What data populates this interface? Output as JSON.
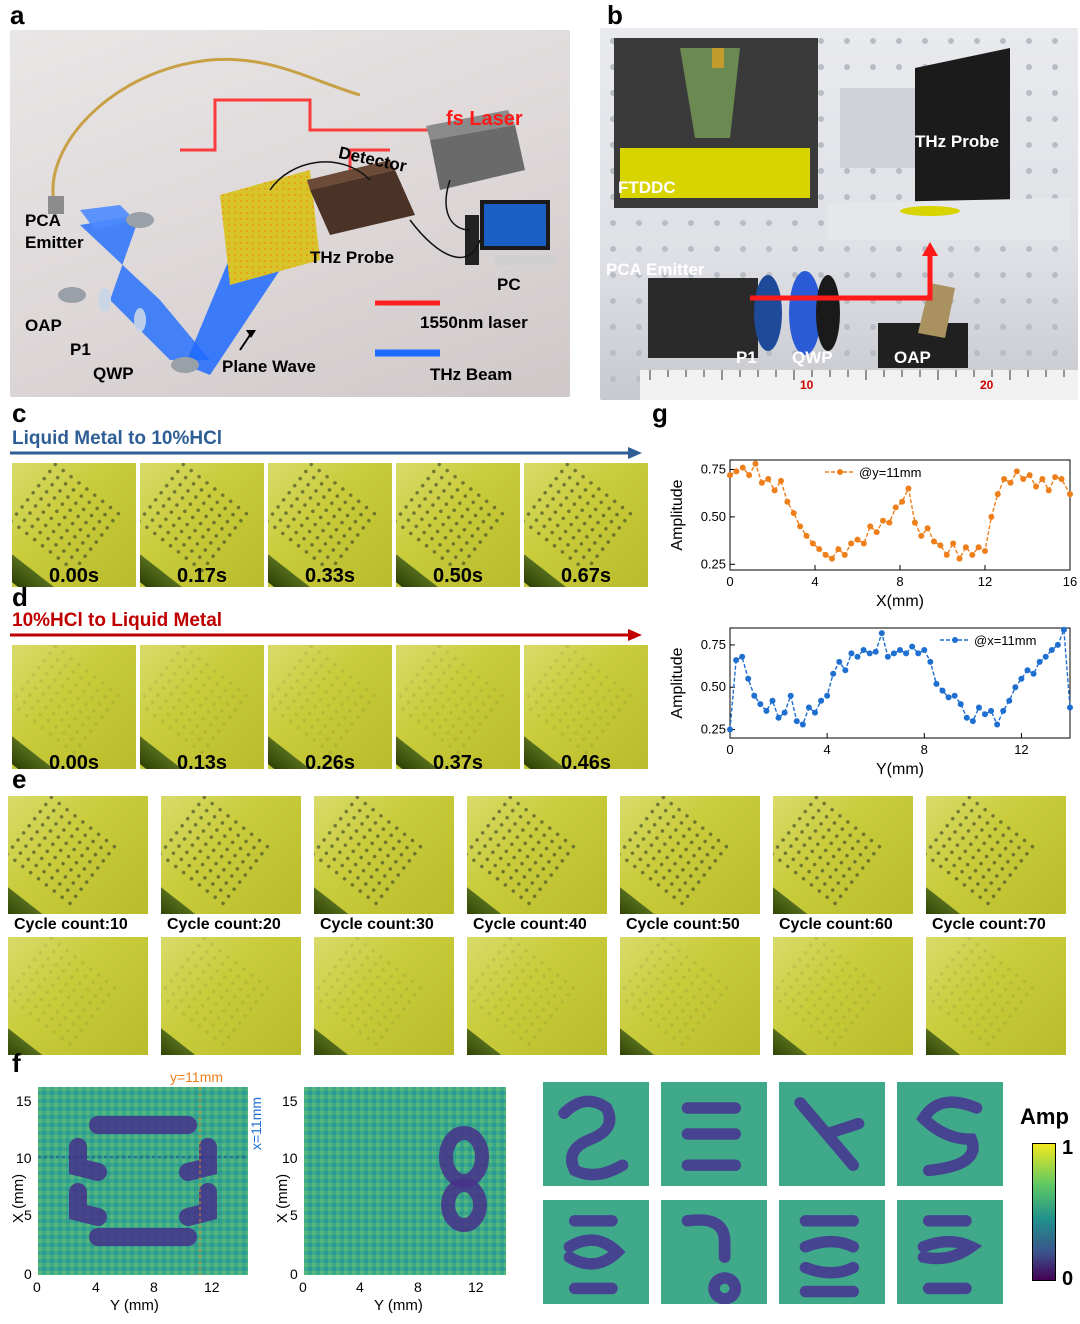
{
  "panels": {
    "a": "a",
    "b": "b",
    "c": "c",
    "d": "d",
    "e": "e",
    "f": "f",
    "g": "g"
  },
  "panel_a": {
    "fs_laser": "fs Laser",
    "detector": "Detector",
    "pca_emitter_1": "PCA",
    "pca_emitter_2": "Emitter",
    "thz_probe": "THz Probe",
    "pc": "PC",
    "oap": "OAP",
    "p1": "P1",
    "qwp": "QWP",
    "plane_wave": "Plane Wave",
    "legend_laser": "1550nm laser",
    "legend_beam": "THz Beam"
  },
  "panel_b": {
    "ftddc": "FTDDC",
    "thz_probe": "THz Probe",
    "pca_emitter": "PCA Emitter",
    "p1": "P1",
    "qwp": "QWP",
    "oap": "OAP",
    "ruler_10": "10",
    "ruler_20": "20"
  },
  "panel_c": {
    "title": "Liquid Metal to 10%HCl",
    "times": [
      "0.00s",
      "0.17s",
      "0.33s",
      "0.50s",
      "0.67s"
    ]
  },
  "panel_d": {
    "title": "10%HCl to Liquid Metal",
    "times": [
      "0.00s",
      "0.13s",
      "0.26s",
      "0.37s",
      "0.46s"
    ]
  },
  "panel_e": {
    "cycles": [
      "Cycle count:10",
      "Cycle count:20",
      "Cycle count:30",
      "Cycle count:40",
      "Cycle count:50",
      "Cycle count:60",
      "Cycle count:70"
    ]
  },
  "panel_f": {
    "y_marker": "y=11mm",
    "x_marker": "x=11mm",
    "xlabel": "Y (mm)",
    "ylabel": "X (mm)",
    "x_ticks": [
      "0",
      "4",
      "8",
      "12"
    ],
    "y_ticks": [
      "0",
      "5",
      "10",
      "15"
    ],
    "colorbar_title": "Amp",
    "colorbar_max": "1",
    "colorbar_min": "0"
  },
  "colors": {
    "orange": "#ee7f1a",
    "blue": "#1f6fd1",
    "title_c": "#2f5e96",
    "title_d": "#c00000"
  },
  "chart_data": [
    {
      "type": "line",
      "legend": "@y=11mm",
      "xlabel": "X(mm)",
      "ylabel": "Amplitude",
      "xlim": [
        0,
        16
      ],
      "ylim": [
        0.22,
        0.8
      ],
      "x_ticks": [
        "0",
        "4",
        "8",
        "12",
        "16"
      ],
      "y_ticks": [
        "0.25",
        "0.50",
        "0.75"
      ],
      "x": [
        0.0,
        0.3,
        0.6,
        0.9,
        1.2,
        1.5,
        1.8,
        2.1,
        2.4,
        2.7,
        3.0,
        3.3,
        3.6,
        3.9,
        4.2,
        4.5,
        4.8,
        5.1,
        5.4,
        5.7,
        6.0,
        6.3,
        6.6,
        6.9,
        7.2,
        7.5,
        7.8,
        8.1,
        8.4,
        8.7,
        9.0,
        9.3,
        9.6,
        9.9,
        10.2,
        10.5,
        10.8,
        11.1,
        11.4,
        11.7,
        12.0,
        12.3,
        12.6,
        12.9,
        13.2,
        13.5,
        13.8,
        14.1,
        14.4,
        14.7,
        15.0,
        15.3,
        15.6,
        16.0
      ],
      "values": [
        0.72,
        0.74,
        0.76,
        0.72,
        0.78,
        0.68,
        0.7,
        0.64,
        0.69,
        0.58,
        0.52,
        0.45,
        0.4,
        0.36,
        0.33,
        0.3,
        0.28,
        0.33,
        0.3,
        0.36,
        0.38,
        0.36,
        0.45,
        0.42,
        0.48,
        0.47,
        0.55,
        0.58,
        0.65,
        0.47,
        0.4,
        0.44,
        0.37,
        0.35,
        0.3,
        0.36,
        0.28,
        0.34,
        0.3,
        0.34,
        0.32,
        0.5,
        0.62,
        0.7,
        0.68,
        0.74,
        0.7,
        0.72,
        0.66,
        0.7,
        0.64,
        0.71,
        0.7,
        0.62
      ]
    },
    {
      "type": "line",
      "legend": "@x=11mm",
      "xlabel": "Y(mm)",
      "ylabel": "Amplitude",
      "xlim": [
        0,
        14
      ],
      "ylim": [
        0.2,
        0.85
      ],
      "x_ticks": [
        "0",
        "4",
        "8",
        "12"
      ],
      "y_ticks": [
        "0.25",
        "0.50",
        "0.75"
      ],
      "x": [
        0.0,
        0.25,
        0.5,
        0.75,
        1.0,
        1.25,
        1.5,
        1.75,
        2.0,
        2.25,
        2.5,
        2.75,
        3.0,
        3.25,
        3.5,
        3.75,
        4.0,
        4.25,
        4.5,
        4.75,
        5.0,
        5.25,
        5.5,
        5.75,
        6.0,
        6.25,
        6.5,
        6.75,
        7.0,
        7.25,
        7.5,
        7.75,
        8.0,
        8.25,
        8.5,
        8.75,
        9.0,
        9.25,
        9.5,
        9.75,
        10.0,
        10.25,
        10.5,
        10.75,
        11.0,
        11.25,
        11.5,
        11.75,
        12.0,
        12.25,
        12.5,
        12.75,
        13.0,
        13.25,
        13.5,
        13.75,
        14.0
      ],
      "values": [
        0.25,
        0.66,
        0.68,
        0.55,
        0.45,
        0.4,
        0.36,
        0.42,
        0.32,
        0.35,
        0.45,
        0.3,
        0.28,
        0.38,
        0.35,
        0.42,
        0.45,
        0.58,
        0.65,
        0.6,
        0.7,
        0.68,
        0.72,
        0.7,
        0.71,
        0.82,
        0.68,
        0.7,
        0.72,
        0.7,
        0.74,
        0.7,
        0.72,
        0.65,
        0.52,
        0.48,
        0.44,
        0.45,
        0.4,
        0.32,
        0.3,
        0.38,
        0.34,
        0.36,
        0.28,
        0.36,
        0.42,
        0.5,
        0.55,
        0.6,
        0.58,
        0.65,
        0.68,
        0.72,
        0.75,
        0.84,
        0.38
      ]
    }
  ]
}
